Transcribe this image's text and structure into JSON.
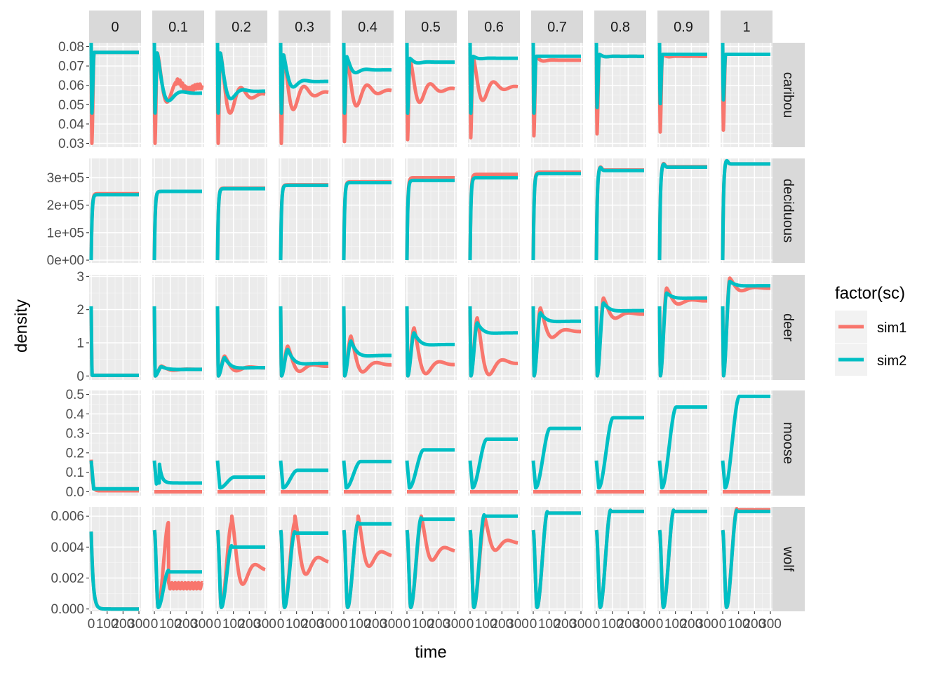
{
  "chart_data": {
    "type": "line",
    "facet_cols_label_values": [
      "0",
      "0.1",
      "0.2",
      "0.3",
      "0.4",
      "0.5",
      "0.6",
      "0.7",
      "0.8",
      "0.9",
      "1"
    ],
    "facet_rows": [
      "caribou",
      "deciduous",
      "deer",
      "moose",
      "wolf"
    ],
    "xlabel": "time",
    "ylabel": "density",
    "x_tick_labels": [
      "0",
      "100",
      "200",
      "300"
    ],
    "x_ticks": [
      0,
      100,
      200,
      300
    ],
    "xlim": [
      0,
      300
    ],
    "y_axes": {
      "caribou": {
        "lim": [
          0.028,
          0.082
        ],
        "ticks": [
          0.03,
          0.04,
          0.05,
          0.06,
          0.07,
          0.08
        ],
        "labels": [
          "0.03",
          "0.04",
          "0.05",
          "0.06",
          "0.07",
          "0.08"
        ]
      },
      "deciduous": {
        "lim": [
          -10000,
          370000
        ],
        "ticks": [
          0,
          100000,
          200000,
          300000
        ],
        "labels": [
          "0e+00",
          "1e+05",
          "2e+05",
          "3e+05"
        ]
      },
      "deer": {
        "lim": [
          -0.12,
          3.05
        ],
        "ticks": [
          0,
          1,
          2,
          3
        ],
        "labels": [
          "0",
          "1",
          "2",
          "3"
        ]
      },
      "moose": {
        "lim": [
          -0.02,
          0.52
        ],
        "ticks": [
          0,
          0.1,
          0.2,
          0.3,
          0.4,
          0.5
        ],
        "labels": [
          "0.0",
          "0.1",
          "0.2",
          "0.3",
          "0.4",
          "0.5"
        ]
      },
      "wolf": {
        "lim": [
          -0.00015,
          0.0066
        ],
        "ticks": [
          0,
          0.002,
          0.004,
          0.006
        ],
        "labels": [
          "0.000",
          "0.002",
          "0.004",
          "0.006"
        ]
      }
    },
    "legend": {
      "title": "factor(sc)",
      "position": "right",
      "entries": [
        "sim1",
        "sim2"
      ]
    },
    "grid": true,
    "colors": {
      "sim1": "#F8766D",
      "sim2": "#00BFC4",
      "panel": "#EBEBEB",
      "strip": "#D9D9D9"
    },
    "series_params": {
      "caribou": {
        "sim1": {
          "start": 0.082,
          "dip": [
            0.029,
            0.029,
            0.029,
            0.029,
            0.03,
            0.031,
            0.032,
            0.033,
            0.034,
            0.035,
            0.036
          ],
          "peak": [
            0.077,
            0.077,
            0.077,
            0.076,
            0.075,
            0.074,
            0.075,
            0.075,
            0.076,
            0.076,
            0.076
          ],
          "final": [
            0.077,
            0.059,
            0.055,
            0.056,
            0.057,
            0.058,
            0.059,
            0.073,
            0.075,
            0.075,
            0.076
          ]
        },
        "sim2": {
          "start": 0.082,
          "dip": [
            0.045,
            0.045,
            0.045,
            0.045,
            0.045,
            0.045,
            0.045,
            0.045,
            0.048,
            0.05,
            0.052
          ],
          "peak": [
            0.077,
            0.077,
            0.077,
            0.076,
            0.075,
            0.074,
            0.075,
            0.075,
            0.076,
            0.076,
            0.076
          ],
          "final": [
            0.077,
            0.056,
            0.057,
            0.062,
            0.068,
            0.072,
            0.074,
            0.075,
            0.075,
            0.076,
            0.076
          ]
        }
      },
      "deciduous": {
        "sim1": {
          "final": [
            242000,
            250000,
            262000,
            274000,
            285000,
            300000,
            312000,
            320000,
            328000,
            340000,
            350000
          ]
        },
        "sim2": {
          "final": [
            238000,
            250000,
            260000,
            272000,
            282000,
            290000,
            300000,
            315000,
            326000,
            338000,
            350000
          ]
        }
      },
      "deer": {
        "sim1": {
          "start": 2.1,
          "peak": [
            0,
            0.3,
            0.6,
            0.9,
            1.2,
            1.45,
            1.75,
            2.05,
            2.35,
            2.65,
            2.95
          ],
          "final": [
            0.02,
            0.2,
            0.25,
            0.3,
            0.35,
            0.36,
            0.4,
            1.35,
            1.87,
            2.27,
            2.65
          ]
        },
        "sim2": {
          "start": 2.1,
          "peak": [
            0,
            0.28,
            0.55,
            0.8,
            1.05,
            1.3,
            1.6,
            1.9,
            2.2,
            2.5,
            2.85
          ],
          "final": [
            0.02,
            0.2,
            0.25,
            0.38,
            0.62,
            0.95,
            1.3,
            1.65,
            1.97,
            2.35,
            2.72
          ]
        }
      },
      "moose": {
        "sim1": {
          "final": [
            0.005,
            0,
            0,
            0,
            0,
            0,
            0,
            0,
            0,
            0,
            0
          ]
        },
        "sim2": {
          "start": 0.16,
          "final": [
            0.01,
            0.045,
            0.075,
            0.11,
            0.155,
            0.215,
            0.27,
            0.325,
            0.38,
            0.435,
            0.49
          ]
        }
      },
      "wolf": {
        "sim1": {
          "start": 0.005,
          "final": [
            0,
            0.0015,
            0.0026,
            0.0031,
            0.0035,
            0.0038,
            0.0043,
            0.0062,
            0.0063,
            0.0063,
            0.0064
          ]
        },
        "sim2": {
          "start": 0.005,
          "final": [
            0,
            0.0024,
            0.004,
            0.0049,
            0.0055,
            0.0058,
            0.006,
            0.0062,
            0.0063,
            0.0063,
            0.0063
          ]
        }
      }
    }
  }
}
